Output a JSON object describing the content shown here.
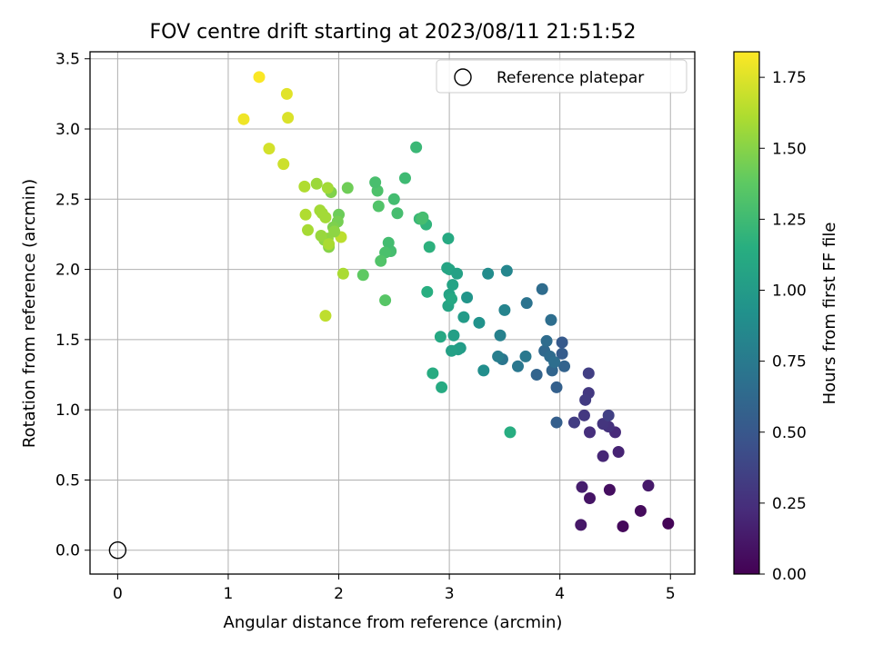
{
  "chart_data": {
    "type": "scatter",
    "title": "FOV centre drift starting at 2023/08/11 21:51:52",
    "xlabel": "Angular distance from reference (arcmin)",
    "ylabel": "Rotation from reference (arcmin)",
    "xlim": [
      -0.25,
      5.22
    ],
    "ylim": [
      -0.17,
      3.55
    ],
    "x_ticks": [
      0,
      1,
      2,
      3,
      4,
      5
    ],
    "y_ticks": [
      0.0,
      0.5,
      1.0,
      1.5,
      2.0,
      2.5,
      3.0,
      3.5
    ],
    "x_tick_labels": [
      "0",
      "1",
      "2",
      "3",
      "4",
      "5"
    ],
    "y_tick_labels": [
      "0.0",
      "0.5",
      "1.0",
      "1.5",
      "2.0",
      "2.5",
      "3.0",
      "3.5"
    ],
    "grid": true,
    "legend": {
      "position": "top-right",
      "entries": [
        {
          "label": "Reference platepar",
          "marker": "open-circle"
        }
      ]
    },
    "reference_point": {
      "x": 0,
      "y": 0
    },
    "colorbar": {
      "label": "Hours from first FF file",
      "colormap": "viridis",
      "min": 0.0,
      "max": 1.84,
      "ticks": [
        0.0,
        0.25,
        0.5,
        0.75,
        1.0,
        1.25,
        1.5,
        1.75
      ],
      "tick_labels": [
        "0.00",
        "0.25",
        "0.50",
        "0.75",
        "1.00",
        "1.25",
        "1.50",
        "1.75"
      ]
    },
    "series": [
      {
        "x": [
          4.98,
          4.57,
          4.73,
          4.45,
          4.27,
          4.19,
          4.8,
          4.2,
          4.53,
          4.39,
          4.5,
          4.27,
          4.44,
          4.39,
          4.22,
          4.26,
          4.13,
          4.26,
          4.44,
          4.23,
          3.97,
          4.04,
          3.97,
          4.02,
          3.93,
          3.86,
          3.79,
          3.91,
          4.02,
          3.95,
          3.88,
          3.84,
          3.92,
          3.7,
          3.69,
          3.62,
          3.48,
          3.44,
          3.46,
          3.5,
          3.52,
          3.35,
          3.31,
          3.27,
          3.16,
          3.13,
          3.1,
          3.08,
          3.04,
          3.02,
          2.99,
          3.0,
          2.92,
          2.93,
          2.85,
          2.8,
          3.0,
          3.03,
          3.07,
          2.98,
          2.99,
          3.02,
          3.55,
          2.82,
          2.79,
          2.73,
          2.7,
          2.6,
          2.53,
          2.5,
          2.47,
          2.45,
          2.42,
          2.42,
          2.38,
          2.36,
          2.35,
          2.33,
          2.76,
          2.75,
          2.22,
          2.04,
          2.08,
          2.0,
          1.99,
          1.95,
          1.93,
          1.91,
          1.9,
          1.87,
          1.84,
          1.85,
          1.88,
          1.8,
          1.72,
          1.7,
          1.69,
          1.9,
          1.5,
          1.37,
          1.14,
          1.28,
          1.53,
          1.54,
          2.02,
          1.96,
          1.88,
          1.83,
          1.91
        ],
        "y": [
          0.19,
          0.17,
          0.28,
          0.43,
          0.37,
          0.18,
          0.46,
          0.45,
          0.7,
          0.67,
          0.84,
          0.84,
          0.88,
          0.9,
          0.96,
          1.12,
          0.91,
          1.26,
          0.96,
          1.07,
          1.16,
          1.31,
          0.91,
          1.4,
          1.28,
          1.42,
          1.25,
          1.38,
          1.48,
          1.34,
          1.49,
          1.86,
          1.64,
          1.76,
          1.38,
          1.31,
          1.36,
          1.38,
          1.53,
          1.71,
          1.99,
          1.97,
          1.28,
          1.62,
          1.8,
          1.66,
          1.44,
          1.43,
          1.53,
          1.42,
          1.74,
          1.82,
          1.52,
          1.16,
          1.26,
          1.84,
          2.0,
          1.89,
          1.97,
          2.01,
          2.22,
          1.79,
          0.84,
          2.16,
          2.32,
          2.36,
          2.87,
          2.65,
          2.4,
          2.5,
          2.13,
          2.19,
          2.12,
          1.78,
          2.06,
          2.45,
          2.56,
          2.62,
          2.37,
          2.36,
          1.96,
          1.97,
          2.58,
          2.39,
          2.34,
          2.3,
          2.55,
          2.16,
          2.22,
          2.21,
          2.24,
          2.4,
          2.37,
          2.61,
          2.28,
          2.39,
          2.59,
          2.58,
          2.75,
          2.86,
          3.07,
          3.37,
          3.25,
          3.08,
          2.23,
          2.27,
          1.67,
          2.42,
          2.18
        ],
        "c": [
          0.02,
          0.04,
          0.05,
          0.07,
          0.1,
          0.12,
          0.13,
          0.15,
          0.18,
          0.2,
          0.22,
          0.24,
          0.26,
          0.28,
          0.3,
          0.3,
          0.33,
          0.34,
          0.35,
          0.32,
          0.56,
          0.58,
          0.55,
          0.53,
          0.6,
          0.62,
          0.59,
          0.64,
          0.52,
          0.66,
          0.65,
          0.65,
          0.66,
          0.7,
          0.74,
          0.73,
          0.72,
          0.78,
          0.8,
          0.82,
          0.84,
          0.88,
          0.9,
          0.93,
          0.95,
          1.0,
          1.0,
          1.02,
          1.03,
          1.04,
          1.07,
          1.06,
          1.1,
          1.12,
          1.13,
          1.15,
          1.08,
          1.06,
          1.05,
          1.07,
          1.11,
          1.1,
          1.14,
          1.17,
          1.19,
          1.22,
          1.23,
          1.25,
          1.28,
          1.27,
          1.28,
          1.27,
          1.3,
          1.35,
          1.33,
          1.33,
          1.31,
          1.29,
          1.27,
          1.28,
          1.38,
          1.6,
          1.43,
          1.42,
          1.45,
          1.47,
          1.48,
          1.5,
          1.53,
          1.52,
          1.55,
          1.57,
          1.58,
          1.56,
          1.59,
          1.62,
          1.62,
          1.58,
          1.7,
          1.72,
          1.8,
          1.83,
          1.76,
          1.74,
          1.65,
          1.52,
          1.66,
          1.58,
          1.6
        ]
      }
    ]
  }
}
